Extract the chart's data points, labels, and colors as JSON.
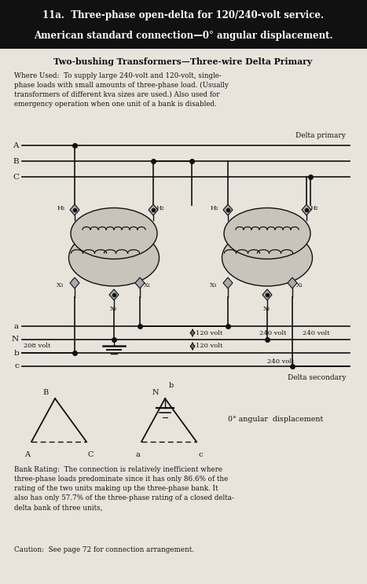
{
  "title_line1": "11a.  Three-phase open-delta for 120/240-volt service.",
  "title_line2": "American standard connection—0° angular displacement.",
  "subtitle": "Two-bushing Transformers—Three-wire Delta Primary",
  "where_used_text": "Where Used:  To supply large 240-volt and 120-volt, single-\nphase loads with small amounts of three-phase load. (Usually\ntransformers of different kva sizes are used.) Also used for\nemergency operation when one unit of a bank is disabled.",
  "delta_primary_label": "Delta primary",
  "delta_secondary_label": "Delta secondary",
  "angular_disp_label": "0° angular  displacement",
  "bank_rating_text": "Bank Rating:  The connection is relatively inefficient where\nthree-phase loads predominate since it has only 86.6% of the\nrating of the two units making up the three-phase bank. It\nalso has only 57.7% of the three-phase rating of a closed delta-\ndelta bank of three units,",
  "caution_text": "Caution:  See page 72 for connection arrangement.",
  "bg_color": "#d8d4cc",
  "header_bg": "#111111",
  "header_text_color": "#ffffff",
  "body_bg": "#e8e4dc",
  "line_color": "#111111",
  "transformer_fill": "#c8c4bc"
}
